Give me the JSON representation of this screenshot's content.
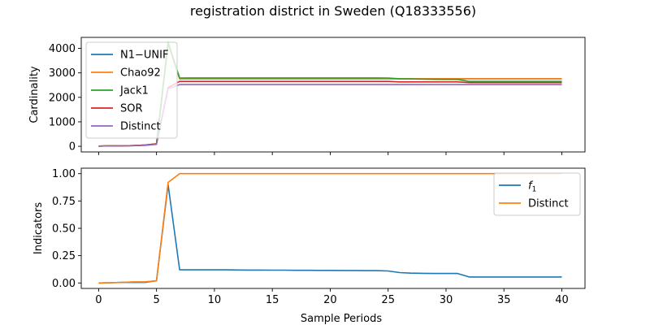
{
  "figure_title": "registration district in Sweden (Q18333556)",
  "colors": {
    "blue": "#1f77b4",
    "orange": "#ff7f0e",
    "green": "#2ca02c",
    "red": "#d62728",
    "purple": "#9467bd"
  },
  "chart_data": [
    {
      "type": "line",
      "panel": "top",
      "title": "",
      "xlabel": "",
      "ylabel": "Cardinality",
      "xlim": [
        -1.5,
        42
      ],
      "ylim": [
        -230,
        4450
      ],
      "yticks": [
        0,
        1000,
        2000,
        3000,
        4000
      ],
      "xticks": [
        0,
        5,
        10,
        15,
        20,
        25,
        30,
        35,
        40
      ],
      "show_xtick_labels": false,
      "legend_position": "top-left",
      "x": [
        0,
        1,
        2,
        3,
        4,
        5,
        6,
        7,
        8,
        9,
        10,
        11,
        12,
        13,
        14,
        15,
        16,
        17,
        18,
        19,
        20,
        21,
        22,
        23,
        24,
        25,
        26,
        27,
        28,
        29,
        30,
        31,
        32,
        33,
        34,
        35,
        36,
        37,
        38,
        39,
        40
      ],
      "series": [
        {
          "name": "N1−UNIF",
          "color": "#1f77b4",
          "values": [
            10,
            15,
            20,
            30,
            50,
            100,
            4200,
            2760,
            2760,
            2760,
            2760,
            2760,
            2760,
            2760,
            2760,
            2760,
            2760,
            2760,
            2760,
            2760,
            2760,
            2760,
            2760,
            2760,
            2760,
            2760,
            2760,
            2760,
            2760,
            2760,
            2760,
            2760,
            2760,
            2760,
            2760,
            2760,
            2760,
            2760,
            2760,
            2760,
            2760
          ]
        },
        {
          "name": "Chao92",
          "color": "#ff7f0e",
          "values": [
            10,
            15,
            20,
            30,
            50,
            100,
            4200,
            2760,
            2760,
            2760,
            2760,
            2760,
            2760,
            2760,
            2760,
            2760,
            2760,
            2760,
            2760,
            2760,
            2760,
            2760,
            2760,
            2760,
            2760,
            2760,
            2760,
            2760,
            2760,
            2760,
            2760,
            2760,
            2760,
            2760,
            2760,
            2760,
            2760,
            2760,
            2760,
            2760,
            2760
          ]
        },
        {
          "name": "Jack1",
          "color": "#2ca02c",
          "values": [
            10,
            15,
            20,
            30,
            50,
            100,
            4250,
            2790,
            2795,
            2795,
            2795,
            2795,
            2795,
            2795,
            2795,
            2795,
            2795,
            2795,
            2795,
            2795,
            2795,
            2795,
            2795,
            2795,
            2795,
            2790,
            2760,
            2750,
            2740,
            2735,
            2730,
            2730,
            2650,
            2650,
            2650,
            2650,
            2650,
            2650,
            2650,
            2650,
            2650
          ]
        },
        {
          "name": "SOR",
          "color": "#d62728",
          "values": [
            10,
            15,
            20,
            30,
            50,
            100,
            2400,
            2650,
            2650,
            2650,
            2650,
            2650,
            2650,
            2650,
            2650,
            2650,
            2650,
            2650,
            2650,
            2650,
            2650,
            2650,
            2650,
            2650,
            2650,
            2650,
            2630,
            2630,
            2630,
            2630,
            2630,
            2630,
            2600,
            2600,
            2600,
            2600,
            2600,
            2600,
            2600,
            2600,
            2600
          ]
        },
        {
          "name": "Distinct",
          "color": "#9467bd",
          "values": [
            8,
            12,
            18,
            25,
            40,
            80,
            2350,
            2520,
            2520,
            2520,
            2520,
            2520,
            2520,
            2520,
            2520,
            2520,
            2520,
            2520,
            2520,
            2520,
            2520,
            2520,
            2520,
            2520,
            2520,
            2520,
            2520,
            2520,
            2520,
            2520,
            2520,
            2520,
            2520,
            2520,
            2520,
            2520,
            2520,
            2520,
            2520,
            2520,
            2520
          ]
        }
      ]
    },
    {
      "type": "line",
      "panel": "bottom",
      "title": "",
      "xlabel": "Sample Periods",
      "ylabel": "Indicators",
      "xlim": [
        -1.5,
        42
      ],
      "ylim": [
        -0.05,
        1.05
      ],
      "yticks": [
        0.0,
        0.25,
        0.5,
        0.75,
        1.0
      ],
      "ytick_labels": [
        "0.00",
        "0.25",
        "0.50",
        "0.75",
        "1.00"
      ],
      "xticks": [
        0,
        5,
        10,
        15,
        20,
        25,
        30,
        35,
        40
      ],
      "xtick_labels": [
        "0",
        "5",
        "10",
        "15",
        "20",
        "25",
        "30",
        "35",
        "40"
      ],
      "legend_position": "top-right",
      "x": [
        0,
        1,
        2,
        3,
        4,
        5,
        6,
        7,
        8,
        9,
        10,
        11,
        12,
        13,
        14,
        15,
        16,
        17,
        18,
        19,
        20,
        21,
        22,
        23,
        24,
        25,
        26,
        27,
        28,
        29,
        30,
        31,
        32,
        33,
        34,
        35,
        36,
        37,
        38,
        39,
        40
      ],
      "series": [
        {
          "name": "f",
          "name_subscript": "1",
          "color": "#1f77b4",
          "values": [
            0.0,
            0.002,
            0.005,
            0.005,
            0.005,
            0.02,
            0.9,
            0.12,
            0.12,
            0.12,
            0.12,
            0.12,
            0.119,
            0.118,
            0.118,
            0.117,
            0.117,
            0.116,
            0.116,
            0.115,
            0.115,
            0.114,
            0.114,
            0.113,
            0.113,
            0.11,
            0.095,
            0.09,
            0.088,
            0.087,
            0.087,
            0.087,
            0.055,
            0.055,
            0.055,
            0.055,
            0.055,
            0.055,
            0.055,
            0.055,
            0.055
          ]
        },
        {
          "name": "Distinct",
          "color": "#ff7f0e",
          "values": [
            0.0,
            0.002,
            0.005,
            0.01,
            0.01,
            0.02,
            0.92,
            1.0,
            1.0,
            1.0,
            1.0,
            1.0,
            1.0,
            1.0,
            1.0,
            1.0,
            1.0,
            1.0,
            1.0,
            1.0,
            1.0,
            1.0,
            1.0,
            1.0,
            1.0,
            1.0,
            1.0,
            1.0,
            1.0,
            1.0,
            1.0,
            1.0,
            1.0,
            1.0,
            1.0,
            1.0,
            1.0,
            1.0,
            1.0,
            1.0,
            1.0
          ]
        }
      ]
    }
  ]
}
